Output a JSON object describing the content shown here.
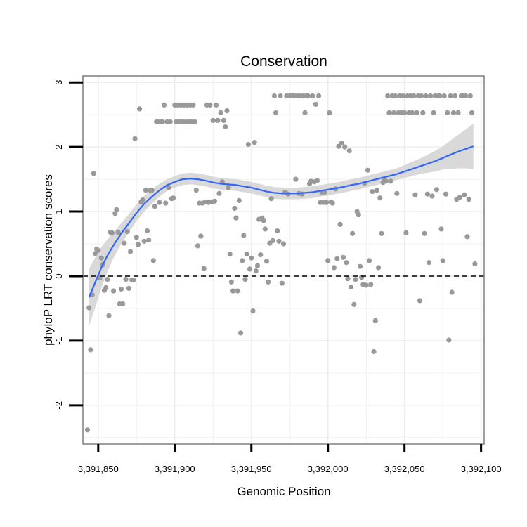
{
  "chart_data": {
    "type": "scatter",
    "title": "Conservation",
    "xlabel": "Genomic Position",
    "ylabel": "phyloP LRT conservation scores",
    "xlim": [
      3391840,
      3392102
    ],
    "ylim": [
      -2.6,
      3.1
    ],
    "x_ticks": [
      3391850,
      3391900,
      3391950,
      3392000,
      3392050,
      3392100
    ],
    "x_tick_labels": [
      "3,391,850",
      "3,391,900",
      "3,391,950",
      "3,392,000",
      "3,392,050",
      "3,392,100"
    ],
    "y_ticks": [
      -2,
      -1,
      0,
      1,
      2,
      3
    ],
    "y_tick_labels": [
      "-2",
      "-1",
      "0",
      "1",
      "2",
      "3"
    ],
    "grid": true,
    "reference_line": {
      "y": 0,
      "style": "dashed"
    },
    "colors": {
      "points": "#999999",
      "smooth_line": "#3366FF",
      "confidence_band": "#d9d9d9",
      "grid": "#eeeeee",
      "frame": "#7f7f7f"
    },
    "smooth": {
      "x": [
        3391844,
        3391848,
        3391852,
        3391856,
        3391860,
        3391865,
        3391870,
        3391875,
        3391880,
        3391885,
        3391890,
        3391895,
        3391900,
        3391905,
        3391910,
        3391915,
        3391920,
        3391925,
        3391930,
        3391935,
        3391940,
        3391945,
        3391950,
        3391955,
        3391960,
        3391965,
        3391970,
        3391975,
        3391980,
        3391985,
        3391990,
        3391995,
        3392000,
        3392005,
        3392010,
        3392015,
        3392020,
        3392025,
        3392030,
        3392035,
        3392040,
        3392045,
        3392050,
        3392055,
        3392060,
        3392065,
        3392070,
        3392075,
        3392080,
        3392085,
        3392090,
        3392095
      ],
      "y": [
        -0.33,
        -0.1,
        0.13,
        0.32,
        0.48,
        0.66,
        0.82,
        0.98,
        1.12,
        1.23,
        1.33,
        1.41,
        1.46,
        1.5,
        1.51,
        1.5,
        1.48,
        1.45,
        1.43,
        1.42,
        1.41,
        1.39,
        1.37,
        1.34,
        1.31,
        1.29,
        1.28,
        1.28,
        1.28,
        1.29,
        1.3,
        1.32,
        1.34,
        1.36,
        1.38,
        1.41,
        1.43,
        1.46,
        1.49,
        1.52,
        1.55,
        1.58,
        1.62,
        1.66,
        1.7,
        1.74,
        1.78,
        1.83,
        1.88,
        1.93,
        1.97,
        2.01
      ],
      "band": [
        0.44,
        0.39,
        0.32,
        0.25,
        0.2,
        0.16,
        0.14,
        0.13,
        0.12,
        0.11,
        0.1,
        0.09,
        0.09,
        0.09,
        0.09,
        0.09,
        0.09,
        0.09,
        0.09,
        0.09,
        0.09,
        0.09,
        0.09,
        0.09,
        0.09,
        0.09,
        0.09,
        0.09,
        0.09,
        0.09,
        0.09,
        0.09,
        0.09,
        0.09,
        0.09,
        0.09,
        0.09,
        0.09,
        0.09,
        0.09,
        0.09,
        0.09,
        0.1,
        0.11,
        0.12,
        0.14,
        0.16,
        0.18,
        0.22,
        0.26,
        0.3,
        0.35
      ]
    },
    "points": [
      [
        3391843,
        -2.38
      ],
      [
        3391844,
        -0.49
      ],
      [
        3391845,
        -1.14
      ],
      [
        3391846,
        -0.29
      ],
      [
        3391847,
        1.59
      ],
      [
        3391848,
        0.35
      ],
      [
        3391849,
        0.42
      ],
      [
        3391850,
        0.4
      ],
      [
        3391851,
        -0.03
      ],
      [
        3391852,
        0.28
      ],
      [
        3391853,
        0.18
      ],
      [
        3391854,
        -0.22
      ],
      [
        3391855,
        -0.18
      ],
      [
        3391856,
        -0.05
      ],
      [
        3391857,
        -0.61
      ],
      [
        3391858,
        0.68
      ],
      [
        3391859,
        0.67
      ],
      [
        3391860,
        -0.23
      ],
      [
        3391861,
        0.97
      ],
      [
        3391862,
        1.03
      ],
      [
        3391863,
        0.68
      ],
      [
        3391864,
        -0.43
      ],
      [
        3391865,
        -0.2
      ],
      [
        3391866,
        -0.43
      ],
      [
        3391867,
        0.51
      ],
      [
        3391868,
        -0.05
      ],
      [
        3391869,
        0.69
      ],
      [
        3391870,
        -0.19
      ],
      [
        3391871,
        0.38
      ],
      [
        3391872,
        -0.06
      ],
      [
        3391873,
        -0.06
      ],
      [
        3391874,
        2.13
      ],
      [
        3391875,
        0.6
      ],
      [
        3391876,
        0.49
      ],
      [
        3391877,
        2.59
      ],
      [
        3391878,
        1.15
      ],
      [
        3391879,
        1.18
      ],
      [
        3391880,
        0.54
      ],
      [
        3391881,
        1.33
      ],
      [
        3391882,
        0.7
      ],
      [
        3391883,
        0.56
      ],
      [
        3391884,
        1.33
      ],
      [
        3391885,
        1.33
      ],
      [
        3391886,
        0.24
      ],
      [
        3391887,
        1.08
      ],
      [
        3391888,
        2.39
      ],
      [
        3391889,
        2.39
      ],
      [
        3391890,
        1.14
      ],
      [
        3391891,
        2.39
      ],
      [
        3391892,
        2.39
      ],
      [
        3391893,
        2.65
      ],
      [
        3391894,
        1.13
      ],
      [
        3391895,
        2.39
      ],
      [
        3391896,
        1.37
      ],
      [
        3391897,
        2.39
      ],
      [
        3391898,
        1.2
      ],
      [
        3391899,
        1.21
      ],
      [
        3391900,
        2.65
      ],
      [
        3391901,
        2.39
      ],
      [
        3391902,
        2.65
      ],
      [
        3391903,
        2.39
      ],
      [
        3391904,
        2.65
      ],
      [
        3391905,
        2.39
      ],
      [
        3391906,
        2.65
      ],
      [
        3391907,
        2.39
      ],
      [
        3391908,
        2.65
      ],
      [
        3391909,
        2.39
      ],
      [
        3391910,
        2.65
      ],
      [
        3391911,
        2.39
      ],
      [
        3391912,
        2.65
      ],
      [
        3391913,
        2.39
      ],
      [
        3391914,
        1.33
      ],
      [
        3391915,
        0.47
      ],
      [
        3391916,
        1.13
      ],
      [
        3391917,
        0.62
      ],
      [
        3391918,
        1.13
      ],
      [
        3391919,
        0.12
      ],
      [
        3391920,
        1.15
      ],
      [
        3391921,
        2.65
      ],
      [
        3391922,
        1.14
      ],
      [
        3391923,
        2.65
      ],
      [
        3391924,
        1.15
      ],
      [
        3391925,
        2.41
      ],
      [
        3391926,
        1.16
      ],
      [
        3391927,
        2.65
      ],
      [
        3391928,
        2.41
      ],
      [
        3391929,
        1.28
      ],
      [
        3391930,
        2.53
      ],
      [
        3391931,
        1.46
      ],
      [
        3391932,
        2.41
      ],
      [
        3391933,
        2.31
      ],
      [
        3391934,
        2.56
      ],
      [
        3391935,
        1.37
      ],
      [
        3391936,
        0.34
      ],
      [
        3391937,
        -0.09
      ],
      [
        3391938,
        -0.23
      ],
      [
        3391939,
        1.05
      ],
      [
        3391940,
        0.9
      ],
      [
        3391941,
        -0.23
      ],
      [
        3391942,
        1.17
      ],
      [
        3391943,
        -0.88
      ],
      [
        3391944,
        0.24
      ],
      [
        3391945,
        0.63
      ],
      [
        3391946,
        -0.05
      ],
      [
        3391947,
        0.34
      ],
      [
        3391948,
        2.04
      ],
      [
        3391949,
        0.11
      ],
      [
        3391950,
        0.28
      ],
      [
        3391951,
        -0.54
      ],
      [
        3391952,
        2.07
      ],
      [
        3391953,
        0.08
      ],
      [
        3391954,
        0.16
      ],
      [
        3391955,
        0.88
      ],
      [
        3391956,
        0.33
      ],
      [
        3391957,
        0.9
      ],
      [
        3391958,
        0.86
      ],
      [
        3391959,
        0.73
      ],
      [
        3391960,
        0.23
      ],
      [
        3391961,
        -0.09
      ],
      [
        3391962,
        0.51
      ],
      [
        3391963,
        1.2
      ],
      [
        3391964,
        0.55
      ],
      [
        3391965,
        2.79
      ],
      [
        3391966,
        2.53
      ],
      [
        3391967,
        0.7
      ],
      [
        3391968,
        0.54
      ],
      [
        3391969,
        2.79
      ],
      [
        3391970,
        -0.11
      ],
      [
        3391971,
        0.5
      ],
      [
        3391972,
        1.3
      ],
      [
        3391973,
        2.79
      ],
      [
        3391974,
        1.27
      ],
      [
        3391975,
        2.79
      ],
      [
        3391976,
        2.79
      ],
      [
        3391977,
        2.79
      ],
      [
        3391978,
        2.79
      ],
      [
        3391979,
        1.5
      ],
      [
        3391980,
        2.79
      ],
      [
        3391981,
        1.28
      ],
      [
        3391982,
        2.79
      ],
      [
        3391983,
        1.27
      ],
      [
        3391984,
        2.79
      ],
      [
        3391985,
        2.53
      ],
      [
        3391986,
        2.79
      ],
      [
        3391987,
        2.79
      ],
      [
        3391988,
        1.43
      ],
      [
        3391989,
        1.47
      ],
      [
        3391990,
        2.79
      ],
      [
        3391991,
        1.46
      ],
      [
        3391992,
        2.66
      ],
      [
        3391993,
        1.48
      ],
      [
        3391994,
        2.79
      ],
      [
        3391995,
        1.14
      ],
      [
        3391996,
        1.3
      ],
      [
        3391997,
        1.14
      ],
      [
        3391998,
        1.3
      ],
      [
        3391999,
        1.14
      ],
      [
        3392000,
        0.24
      ],
      [
        3392001,
        2.53
      ],
      [
        3392002,
        1.15
      ],
      [
        3392003,
        1.13
      ],
      [
        3392004,
        0.13
      ],
      [
        3392005,
        1.35
      ],
      [
        3392006,
        0.27
      ],
      [
        3392007,
        2.01
      ],
      [
        3392008,
        0.8
      ],
      [
        3392009,
        2.06
      ],
      [
        3392010,
        0.29
      ],
      [
        3392011,
        2.0
      ],
      [
        3392012,
        0.21
      ],
      [
        3392013,
        -0.04
      ],
      [
        3392014,
        1.94
      ],
      [
        3392015,
        -0.17
      ],
      [
        3392016,
        0.66
      ],
      [
        3392017,
        -0.44
      ],
      [
        3392018,
        -0.05
      ],
      [
        3392019,
        1.0
      ],
      [
        3392020,
        0.95
      ],
      [
        3392021,
        0.15
      ],
      [
        3392022,
        -0.02
      ],
      [
        3392023,
        -0.13
      ],
      [
        3392024,
        1.44
      ],
      [
        3392025,
        -0.14
      ],
      [
        3392026,
        1.64
      ],
      [
        3392027,
        0.24
      ],
      [
        3392028,
        -0.13
      ],
      [
        3392029,
        1.31
      ],
      [
        3392030,
        -1.17
      ],
      [
        3392031,
        -0.69
      ],
      [
        3392032,
        1.33
      ],
      [
        3392033,
        0.13
      ],
      [
        3392034,
        1.21
      ],
      [
        3392035,
        0.66
      ],
      [
        3392036,
        1.45
      ],
      [
        3392037,
        1.49
      ],
      [
        3392038,
        1.47
      ],
      [
        3392039,
        2.79
      ],
      [
        3392040,
        2.53
      ],
      [
        3392041,
        1.47
      ],
      [
        3392042,
        2.79
      ],
      [
        3392043,
        2.53
      ],
      [
        3392044,
        2.79
      ],
      [
        3392045,
        1.28
      ],
      [
        3392046,
        2.53
      ],
      [
        3392047,
        2.79
      ],
      [
        3392048,
        2.53
      ],
      [
        3392049,
        2.79
      ],
      [
        3392050,
        2.53
      ],
      [
        3392051,
        0.67
      ],
      [
        3392052,
        2.79
      ],
      [
        3392053,
        2.53
      ],
      [
        3392054,
        2.79
      ],
      [
        3392055,
        2.53
      ],
      [
        3392056,
        2.79
      ],
      [
        3392057,
        1.26
      ],
      [
        3392058,
        2.53
      ],
      [
        3392059,
        2.79
      ],
      [
        3392060,
        -0.38
      ],
      [
        3392061,
        2.79
      ],
      [
        3392062,
        2.53
      ],
      [
        3392063,
        0.66
      ],
      [
        3392064,
        2.79
      ],
      [
        3392065,
        1.27
      ],
      [
        3392066,
        0.21
      ],
      [
        3392067,
        2.79
      ],
      [
        3392068,
        1.24
      ],
      [
        3392069,
        2.53
      ],
      [
        3392070,
        2.79
      ],
      [
        3392071,
        1.34
      ],
      [
        3392072,
        2.79
      ],
      [
        3392073,
        2.79
      ],
      [
        3392074,
        0.73
      ],
      [
        3392075,
        0.24
      ],
      [
        3392076,
        2.79
      ],
      [
        3392077,
        1.27
      ],
      [
        3392078,
        2.53
      ],
      [
        3392079,
        -0.99
      ],
      [
        3392080,
        2.79
      ],
      [
        3392081,
        -0.25
      ],
      [
        3392082,
        2.53
      ],
      [
        3392083,
        2.79
      ],
      [
        3392084,
        1.19
      ],
      [
        3392085,
        2.53
      ],
      [
        3392086,
        1.22
      ],
      [
        3392087,
        2.79
      ],
      [
        3392088,
        2.79
      ],
      [
        3392089,
        1.26
      ],
      [
        3392090,
        2.79
      ],
      [
        3392091,
        0.61
      ],
      [
        3392092,
        1.19
      ],
      [
        3392093,
        2.79
      ],
      [
        3392094,
        2.53
      ],
      [
        3392096,
        0.19
      ]
    ]
  }
}
